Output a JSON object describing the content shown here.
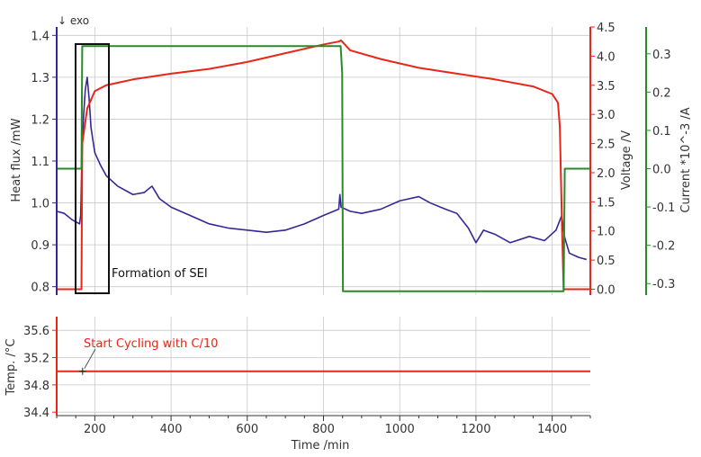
{
  "chart_data": [
    {
      "type": "line",
      "exo_label": "↓ exo",
      "xlabel": "Time /min",
      "x_ticks": [
        200,
        400,
        600,
        800,
        1000,
        1200,
        1400
      ],
      "xlim": [
        100,
        1500
      ],
      "grid": true,
      "annotation": "Formation of SEI",
      "axes": {
        "heat": {
          "label": "Heat flux /mW",
          "color": "#3a2596",
          "range": [
            0.78,
            1.42
          ],
          "ticks": [
            "0.8",
            "0.9",
            "1.0",
            "1.1",
            "1.2",
            "1.3",
            "1.4"
          ]
        },
        "voltage": {
          "label": "Voltage /V",
          "color": "#e8261a",
          "range": [
            -0.1,
            4.5
          ],
          "ticks": [
            "0.0",
            "0.5",
            "1.0",
            "1.5",
            "2.0",
            "2.5",
            "3.0",
            "3.5",
            "4.0",
            "4.5"
          ]
        },
        "current": {
          "label": "Current *10^-3 /A",
          "color": "#2a8a2a",
          "range": [
            -0.33,
            0.37
          ],
          "ticks": [
            "-0.3",
            "-0.2",
            "-0.1",
            "0.0",
            "0.1",
            "0.2",
            "0.3"
          ]
        }
      },
      "series": [
        {
          "axis": "heat",
          "color": "#3a2596",
          "points": [
            [
              100,
              0.98
            ],
            [
              120,
              0.975
            ],
            [
              140,
              0.96
            ],
            [
              160,
              0.95
            ],
            [
              163,
              0.97
            ],
            [
              166,
              1.1
            ],
            [
              170,
              1.2
            ],
            [
              175,
              1.27
            ],
            [
              180,
              1.3
            ],
            [
              185,
              1.25
            ],
            [
              190,
              1.18
            ],
            [
              200,
              1.12
            ],
            [
              215,
              1.09
            ],
            [
              230,
              1.065
            ],
            [
              260,
              1.04
            ],
            [
              300,
              1.02
            ],
            [
              330,
              1.025
            ],
            [
              350,
              1.04
            ],
            [
              370,
              1.01
            ],
            [
              400,
              0.99
            ],
            [
              450,
              0.97
            ],
            [
              500,
              0.95
            ],
            [
              550,
              0.94
            ],
            [
              600,
              0.935
            ],
            [
              650,
              0.93
            ],
            [
              700,
              0.935
            ],
            [
              750,
              0.95
            ],
            [
              800,
              0.97
            ],
            [
              840,
              0.985
            ],
            [
              843,
              1.02
            ],
            [
              846,
              0.99
            ],
            [
              870,
              0.98
            ],
            [
              900,
              0.975
            ],
            [
              950,
              0.985
            ],
            [
              1000,
              1.005
            ],
            [
              1050,
              1.015
            ],
            [
              1080,
              1.0
            ],
            [
              1120,
              0.985
            ],
            [
              1150,
              0.975
            ],
            [
              1180,
              0.94
            ],
            [
              1200,
              0.905
            ],
            [
              1220,
              0.935
            ],
            [
              1250,
              0.925
            ],
            [
              1290,
              0.905
            ],
            [
              1340,
              0.92
            ],
            [
              1380,
              0.91
            ],
            [
              1410,
              0.935
            ],
            [
              1425,
              0.97
            ],
            [
              1432,
              0.92
            ],
            [
              1445,
              0.88
            ],
            [
              1470,
              0.87
            ],
            [
              1490,
              0.865
            ]
          ]
        },
        {
          "axis": "voltage",
          "color": "#e8261a",
          "points": [
            [
              100,
              0.0
            ],
            [
              165,
              0.0
            ],
            [
              167,
              2.5
            ],
            [
              180,
              3.1
            ],
            [
              200,
              3.4
            ],
            [
              230,
              3.5
            ],
            [
              300,
              3.6
            ],
            [
              400,
              3.7
            ],
            [
              500,
              3.78
            ],
            [
              600,
              3.9
            ],
            [
              700,
              4.05
            ],
            [
              800,
              4.2
            ],
            [
              840,
              4.25
            ],
            [
              846,
              4.27
            ],
            [
              870,
              4.1
            ],
            [
              950,
              3.95
            ],
            [
              1050,
              3.8
            ],
            [
              1150,
              3.7
            ],
            [
              1250,
              3.6
            ],
            [
              1350,
              3.48
            ],
            [
              1400,
              3.35
            ],
            [
              1415,
              3.2
            ],
            [
              1420,
              2.8
            ],
            [
              1423,
              1.9
            ],
            [
              1426,
              1.0
            ],
            [
              1430,
              0.0
            ],
            [
              1500,
              0.0
            ]
          ]
        },
        {
          "axis": "current",
          "color": "#2a8a2a",
          "points": [
            [
              100,
              0.0
            ],
            [
              165,
              0.0
            ],
            [
              167,
              0.32
            ],
            [
              845,
              0.32
            ],
            [
              849,
              0.25
            ],
            [
              851,
              -0.32
            ],
            [
              1430,
              -0.32
            ],
            [
              1433,
              0.0
            ],
            [
              1500,
              0.0
            ]
          ]
        }
      ]
    },
    {
      "type": "line",
      "ylabel": "Temp. /°C",
      "color": "#e8261a",
      "range": [
        34.35,
        35.8
      ],
      "y_ticks": [
        "34.4",
        "34.8",
        "35.2",
        "35.6"
      ],
      "annotation": "Start Cycling with C/10",
      "marker_time": 168,
      "points": [
        [
          100,
          35.0
        ],
        [
          1500,
          35.0
        ]
      ]
    }
  ]
}
